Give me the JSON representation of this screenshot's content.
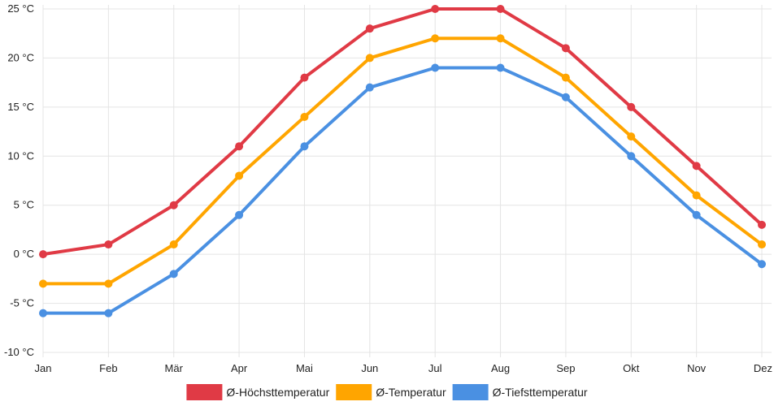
{
  "chart_data": {
    "type": "line",
    "categories": [
      "Jan",
      "Feb",
      "Mär",
      "Apr",
      "Mai",
      "Jun",
      "Jul",
      "Aug",
      "Sep",
      "Okt",
      "Nov",
      "Dez"
    ],
    "series": [
      {
        "name": "Ø-Höchsttemperatur",
        "color": "#e03a45",
        "values": [
          0,
          1,
          5,
          11,
          18,
          23,
          25,
          25,
          21,
          15,
          9,
          3
        ]
      },
      {
        "name": "Ø-Temperatur",
        "color": "#ffa500",
        "values": [
          -3,
          -3,
          1,
          8,
          14,
          20,
          22,
          22,
          18,
          12,
          6,
          1
        ]
      },
      {
        "name": "Ø-Tiefsttemperatur",
        "color": "#4a90e2",
        "values": [
          -6,
          -6,
          -2,
          4,
          11,
          17,
          19,
          19,
          16,
          10,
          4,
          -1
        ]
      }
    ],
    "y_ticks": [
      "25 °C",
      "20 °C",
      "15 °C",
      "10 °C",
      "5 °C",
      "0 °C",
      "-5 °C",
      "-10 °C"
    ],
    "ylim": [
      -10,
      25
    ],
    "y_unit": "°C",
    "grid": true,
    "legend_position": "bottom"
  }
}
